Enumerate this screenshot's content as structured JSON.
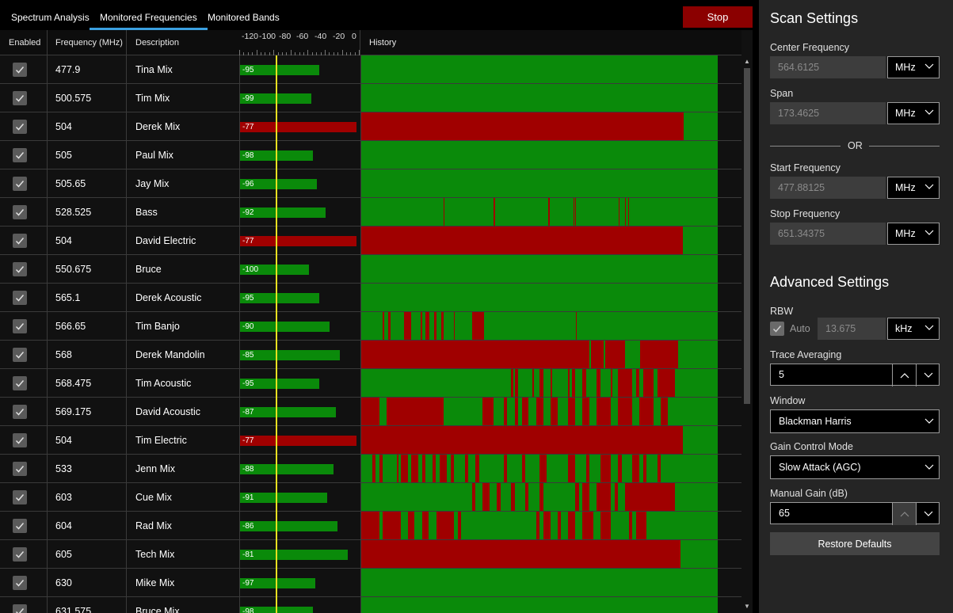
{
  "tabs": [
    {
      "label": "Spectrum Analysis",
      "active": false
    },
    {
      "label": "Monitored Frequencies",
      "active": true
    },
    {
      "label": "Monitored Bands",
      "active": false
    }
  ],
  "stop_label": "Stop",
  "table": {
    "headers": {
      "enabled": "Enabled",
      "frequency": "Frequency (MHz)",
      "description": "Description",
      "history": "History"
    },
    "scale_labels": [
      "-120",
      "-100",
      "-80",
      "-60",
      "-40",
      "-20",
      "0"
    ],
    "threshold_dbm": -80,
    "colors": {
      "ok": "#0a8a0a",
      "alarm": "#a00000",
      "threshold": "#e8e020"
    },
    "rows": [
      {
        "enabled": true,
        "freq": "477.9",
        "desc": "Tina Mix",
        "level": "-95",
        "history": []
      },
      {
        "enabled": true,
        "freq": "500.575",
        "desc": "Tim Mix",
        "level": "-99",
        "history": []
      },
      {
        "enabled": true,
        "freq": "504",
        "desc": "Derek Mix",
        "level": "-77",
        "history": [
          [
            0,
            0.905
          ]
        ]
      },
      {
        "enabled": true,
        "freq": "505",
        "desc": "Paul Mix",
        "level": "-98",
        "history": []
      },
      {
        "enabled": true,
        "freq": "505.65",
        "desc": "Jay Mix",
        "level": "-96",
        "history": []
      },
      {
        "enabled": true,
        "freq": "528.525",
        "desc": "Bass",
        "level": "-92",
        "history": [
          [
            0.231,
            0.234
          ],
          [
            0.372,
            0.375
          ],
          [
            0.525,
            0.528
          ],
          [
            0.595,
            0.598
          ],
          [
            0.6,
            0.603
          ],
          [
            0.722,
            0.725
          ],
          [
            0.74,
            0.743
          ],
          [
            0.748,
            0.751
          ]
        ]
      },
      {
        "enabled": true,
        "freq": "504",
        "desc": "David Electric",
        "level": "-77",
        "history": [
          [
            0,
            0.903
          ]
        ]
      },
      {
        "enabled": true,
        "freq": "550.675",
        "desc": "Bruce",
        "level": "-100",
        "history": []
      },
      {
        "enabled": true,
        "freq": "565.1",
        "desc": "Derek Acoustic",
        "level": "-95",
        "history": []
      },
      {
        "enabled": true,
        "freq": "566.65",
        "desc": "Tim Banjo",
        "level": "-90",
        "history": [
          [
            0.06,
            0.065
          ],
          [
            0.075,
            0.082
          ],
          [
            0.12,
            0.14
          ],
          [
            0.167,
            0.172
          ],
          [
            0.18,
            0.19
          ],
          [
            0.205,
            0.21
          ],
          [
            0.225,
            0.23
          ],
          [
            0.26,
            0.262
          ],
          [
            0.31,
            0.345
          ],
          [
            0.602,
            0.605
          ]
        ]
      },
      {
        "enabled": true,
        "freq": "568",
        "desc": "Derek Mandolin",
        "level": "-85",
        "history": [
          [
            0,
            0.64
          ],
          [
            0.644,
            0.68
          ],
          [
            0.684,
            0.74
          ],
          [
            0.782,
            0.889
          ]
        ]
      },
      {
        "enabled": true,
        "freq": "568.475",
        "desc": "Tim Acoustic",
        "level": "-95",
        "history": [
          [
            0.42,
            0.426
          ],
          [
            0.43,
            0.44
          ],
          [
            0.48,
            0.485
          ],
          [
            0.5,
            0.51
          ],
          [
            0.53,
            0.535
          ],
          [
            0.58,
            0.585
          ],
          [
            0.59,
            0.6
          ],
          [
            0.62,
            0.63
          ],
          [
            0.66,
            0.67
          ],
          [
            0.7,
            0.705
          ],
          [
            0.72,
            0.76
          ],
          [
            0.77,
            0.78
          ],
          [
            0.79,
            0.82
          ],
          [
            0.83,
            0.88
          ]
        ]
      },
      {
        "enabled": true,
        "freq": "569.175",
        "desc": "David Acoustic",
        "level": "-87",
        "history": [
          [
            0,
            0.05
          ],
          [
            0.07,
            0.23
          ],
          [
            0.34,
            0.37
          ],
          [
            0.4,
            0.41
          ],
          [
            0.43,
            0.44
          ],
          [
            0.45,
            0.47
          ],
          [
            0.49,
            0.51
          ],
          [
            0.53,
            0.55
          ],
          [
            0.58,
            0.6
          ],
          [
            0.62,
            0.64
          ],
          [
            0.66,
            0.7
          ],
          [
            0.72,
            0.76
          ],
          [
            0.78,
            0.82
          ],
          [
            0.84,
            0.86
          ]
        ]
      },
      {
        "enabled": true,
        "freq": "504",
        "desc": "Tim Electric",
        "level": "-77",
        "history": [
          [
            0,
            0.903
          ]
        ]
      },
      {
        "enabled": true,
        "freq": "533",
        "desc": "Jenn Mix",
        "level": "-88",
        "history": [
          [
            0.03,
            0.04
          ],
          [
            0.05,
            0.06
          ],
          [
            0.1,
            0.105
          ],
          [
            0.11,
            0.13
          ],
          [
            0.14,
            0.16
          ],
          [
            0.17,
            0.18
          ],
          [
            0.2,
            0.21
          ],
          [
            0.22,
            0.24
          ],
          [
            0.25,
            0.26
          ],
          [
            0.29,
            0.3
          ],
          [
            0.32,
            0.33
          ],
          [
            0.4,
            0.41
          ],
          [
            0.45,
            0.46
          ],
          [
            0.5,
            0.52
          ],
          [
            0.58,
            0.6
          ],
          [
            0.63,
            0.64
          ],
          [
            0.67,
            0.7
          ],
          [
            0.72,
            0.73
          ],
          [
            0.76,
            0.78
          ],
          [
            0.79,
            0.8
          ],
          [
            0.83,
            0.84
          ]
        ]
      },
      {
        "enabled": true,
        "freq": "603",
        "desc": "Cue Mix",
        "level": "-91",
        "history": [
          [
            0.31,
            0.32
          ],
          [
            0.34,
            0.36
          ],
          [
            0.38,
            0.39
          ],
          [
            0.42,
            0.43
          ],
          [
            0.46,
            0.47
          ],
          [
            0.5,
            0.51
          ],
          [
            0.6,
            0.61
          ],
          [
            0.62,
            0.64
          ],
          [
            0.66,
            0.7
          ],
          [
            0.71,
            0.72
          ],
          [
            0.74,
            0.88
          ]
        ]
      },
      {
        "enabled": true,
        "freq": "604",
        "desc": "Rad Mix",
        "level": "-86",
        "history": [
          [
            0,
            0.05
          ],
          [
            0.06,
            0.11
          ],
          [
            0.13,
            0.15
          ],
          [
            0.17,
            0.19
          ],
          [
            0.21,
            0.26
          ],
          [
            0.27,
            0.28
          ],
          [
            0.49,
            0.5
          ],
          [
            0.51,
            0.53
          ],
          [
            0.55,
            0.56
          ],
          [
            0.58,
            0.6
          ],
          [
            0.62,
            0.65
          ],
          [
            0.67,
            0.7
          ],
          [
            0.75,
            0.76
          ],
          [
            0.77,
            0.8
          ]
        ]
      },
      {
        "enabled": true,
        "freq": "605",
        "desc": "Tech Mix",
        "level": "-81",
        "history": [
          [
            0,
            0.895
          ]
        ]
      },
      {
        "enabled": true,
        "freq": "630",
        "desc": "Mike Mix",
        "level": "-97",
        "history": []
      },
      {
        "enabled": true,
        "freq": "631.575",
        "desc": "Bruce Mix",
        "level": "-98",
        "history": []
      }
    ]
  },
  "panel": {
    "scan_title": "Scan Settings",
    "center_label": "Center Frequency",
    "center_value": "564.6125",
    "center_unit": "MHz",
    "span_label": "Span",
    "span_value": "173.4625",
    "span_unit": "MHz",
    "or_text": "OR",
    "start_label": "Start Frequency",
    "start_value": "477.88125",
    "start_unit": "MHz",
    "stop_label": "Stop Frequency",
    "stop_value": "651.34375",
    "stop_unit": "MHz",
    "advanced_title": "Advanced Settings",
    "rbw_label": "RBW",
    "auto_label": "Auto",
    "rbw_value": "13.675",
    "rbw_unit": "kHz",
    "trace_label": "Trace Averaging",
    "trace_value": "5",
    "window_label": "Window",
    "window_value": "Blackman Harris",
    "gain_mode_label": "Gain Control Mode",
    "gain_mode_value": "Slow Attack (AGC)",
    "manual_gain_label": "Manual Gain (dB)",
    "manual_gain_value": "65",
    "restore_label": "Restore Defaults"
  }
}
